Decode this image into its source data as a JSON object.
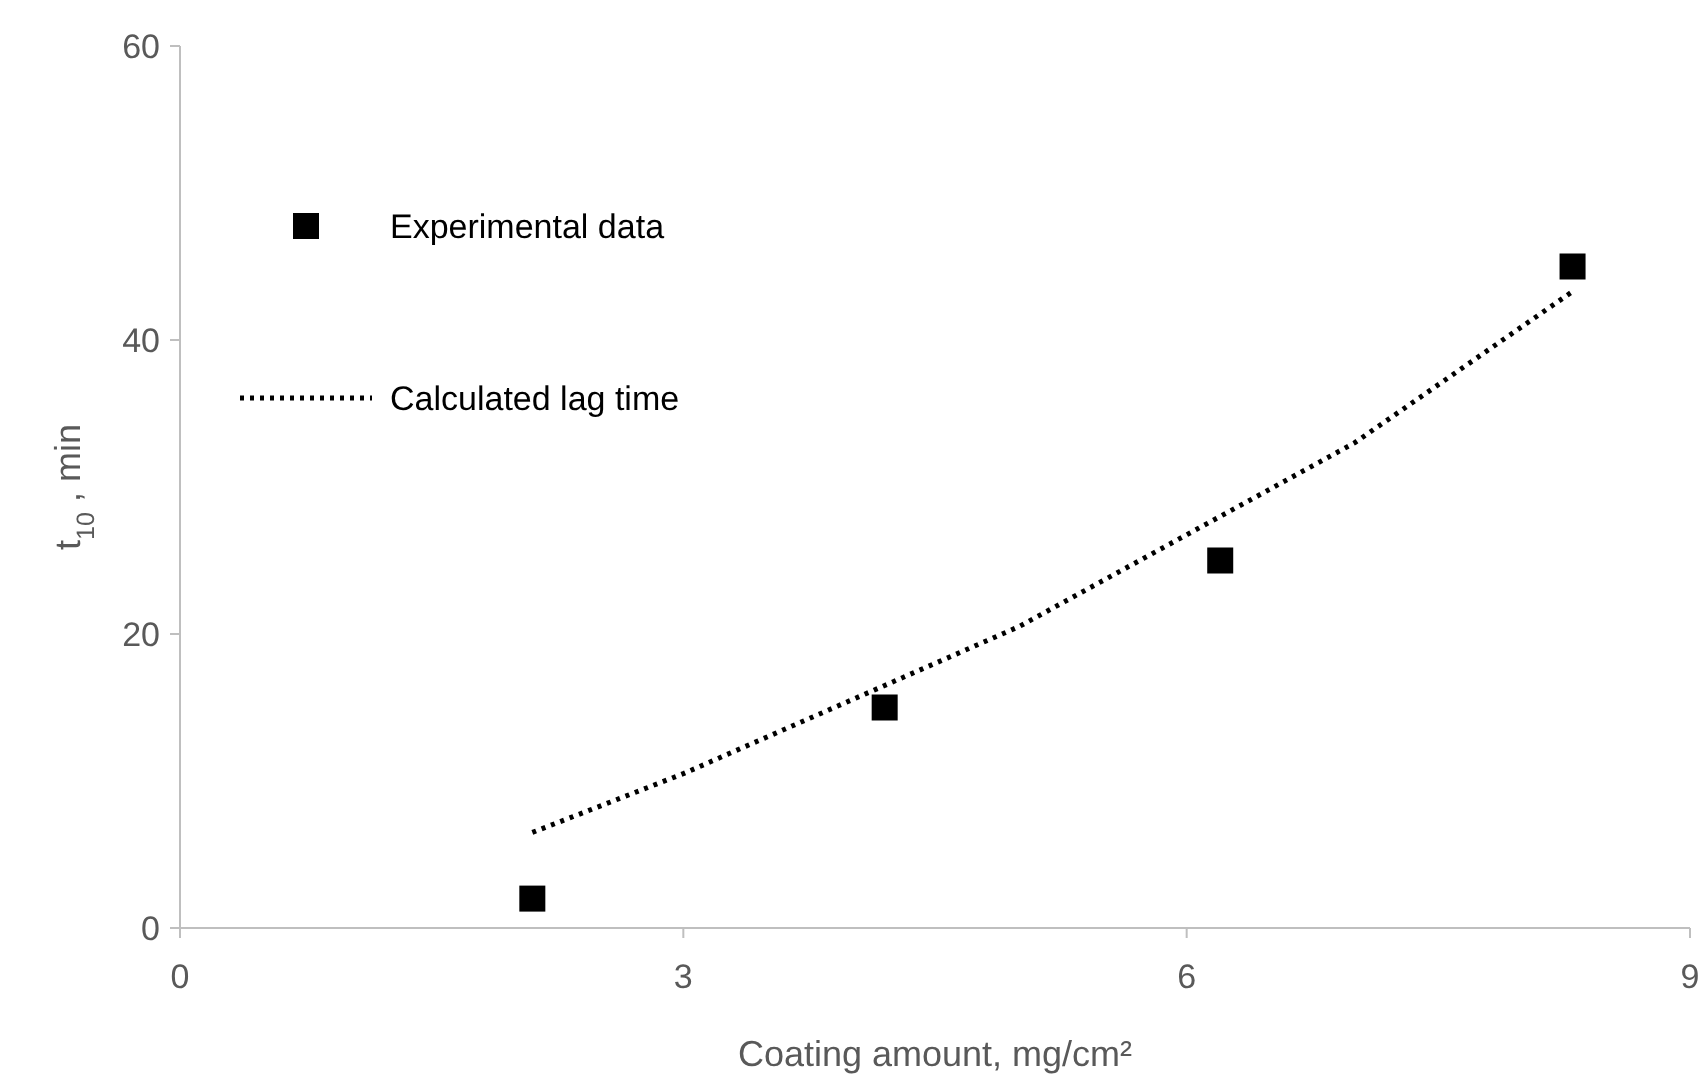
{
  "chart_data": {
    "type": "scatter",
    "xlabel": "Coating amount, mg/cm²",
    "ylabel": "t$_{10}$ , min",
    "xlim": [
      0,
      9
    ],
    "xticks": [
      0,
      3,
      6,
      9
    ],
    "ylim": [
      0,
      60
    ],
    "yticks": [
      0,
      20,
      40,
      60
    ],
    "grid": false,
    "legend": "top left",
    "series": [
      {
        "name": "Experimental data",
        "color": "#000000",
        "marker": "square",
        "x": [
          2.1,
          4.2,
          6.2,
          8.3
        ],
        "values": [
          2,
          15,
          25,
          45
        ]
      },
      {
        "name": "Calculated lag time",
        "type": "line",
        "color": "#000000",
        "line_style": "dotted",
        "x": [
          2.1,
          3,
          4.2,
          5,
          6.2,
          7,
          8.3
        ],
        "values": [
          6.5,
          10.5,
          16.5,
          20.5,
          28,
          33,
          43.3
        ]
      }
    ]
  }
}
